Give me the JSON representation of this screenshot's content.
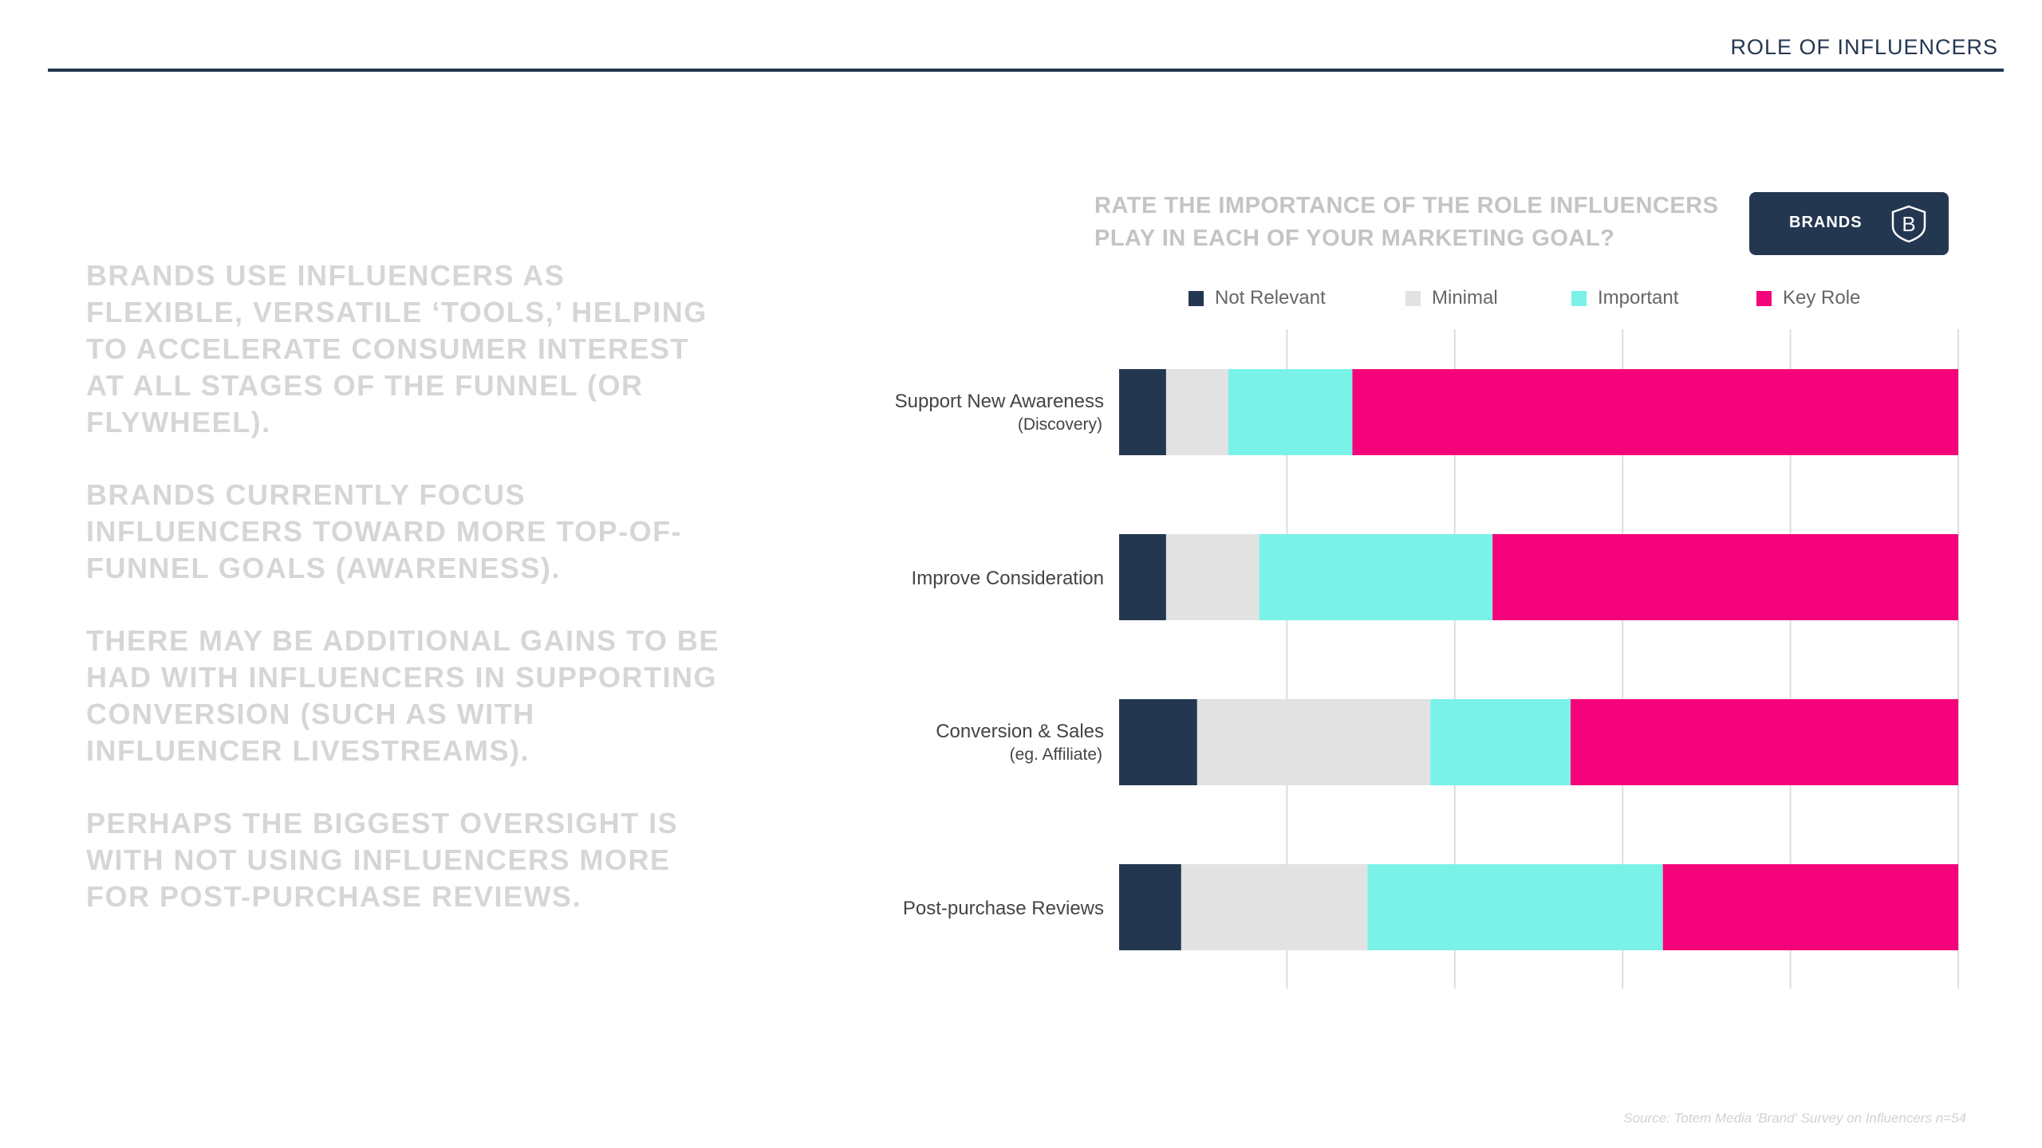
{
  "header": {
    "title": "ROLE OF INFLUENCERS"
  },
  "body_copy": [
    "BRANDS USE INFLUENCERS AS FLEXIBLE, VERSATILE ‘TOOLS,’ HELPING TO ACCELERATE CONSUMER INTEREST AT ALL STAGES OF THE FUNNEL (OR FLYWHEEL).",
    "BRANDS CURRENTLY FOCUS INFLUENCERS TOWARD MORE TOP-OF-FUNNEL GOALS (AWARENESS).",
    "THERE MAY BE ADDITIONAL GAINS TO BE HAD WITH INFLUENCERS IN SUPPORTING CONVERSION (SUCH AS WITH INFLUENCER LIVESTREAMS).",
    "PERHAPS THE BIGGEST OVERSIGHT IS WITH NOT USING INFLUENCERS MORE FOR POST-PURCHASE REVIEWS."
  ],
  "question": {
    "line1": "RATE THE IMPORTANCE OF THE ROLE INFLUENCERS",
    "line2": "PLAY IN EACH OF YOUR MARKETING GOAL?"
  },
  "badge": {
    "label": "BRANDS",
    "icon": "b-shield-icon",
    "icon_letter": "B"
  },
  "colors": {
    "navy": "#233750",
    "not_relevant": "#233750",
    "minimal": "#e2e2e2",
    "important": "#7af2e8",
    "key_role": "#f5037a",
    "body_text": "#d6d6d6"
  },
  "chart_data": {
    "type": "bar",
    "orientation": "horizontal",
    "stacked": true,
    "percent_stacked": true,
    "title": "RATE THE IMPORTANCE OF THE ROLE INFLUENCERS PLAY IN EACH OF YOUR MARKETING GOAL?",
    "xlim": [
      0,
      100
    ],
    "grid": true,
    "legend_position": "top",
    "categories": [
      {
        "label": "Support New Awareness",
        "sublabel": "(Discovery)"
      },
      {
        "label": "Improve Consideration",
        "sublabel": ""
      },
      {
        "label": "Conversion & Sales",
        "sublabel": "(eg. Affiliate)"
      },
      {
        "label": "Post-purchase Reviews",
        "sublabel": ""
      }
    ],
    "series": [
      {
        "name": "Not Relevant",
        "color": "#233750",
        "values": [
          5.6,
          5.6,
          9.3,
          7.4
        ]
      },
      {
        "name": "Minimal",
        "color": "#e2e2e2",
        "values": [
          7.4,
          11.1,
          27.8,
          22.2
        ]
      },
      {
        "name": "Important",
        "color": "#7af2e8",
        "values": [
          14.8,
          27.8,
          16.7,
          35.2
        ]
      },
      {
        "name": "Key Role",
        "color": "#f5037a",
        "values": [
          72.2,
          55.5,
          46.2,
          35.2
        ]
      }
    ]
  },
  "source": "Source: Totem Media 'Brand' Survey on Influencers n=54"
}
